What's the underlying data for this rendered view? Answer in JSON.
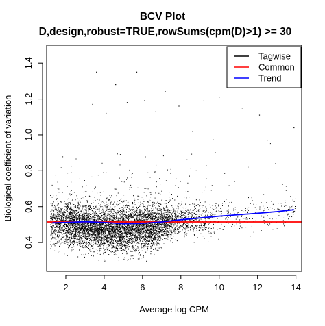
{
  "chart_data": {
    "type": "scatter",
    "title": "BCV Plot",
    "subtitle": "D,design,robust=TRUE,rowSums(cpm(D)>1) >= 30",
    "xlabel": "Average log CPM",
    "ylabel": "Biological coefficient of variation",
    "xlim": [
      1.0,
      14.3
    ],
    "ylim": [
      0.24,
      1.5
    ],
    "xticks": [
      2,
      4,
      6,
      8,
      10,
      12,
      14
    ],
    "yticks": [
      0.4,
      0.6,
      0.8,
      1.0,
      1.2,
      1.4
    ],
    "ytick_labels": [
      "0.4",
      "0.6",
      "0.8",
      "1.0",
      "1.2",
      "1.4"
    ],
    "grid": false,
    "legend_position": "top-right",
    "series": [
      {
        "name": "Tagwise",
        "kind": "points",
        "color": "#000000",
        "description_points": "dense cloud",
        "center_curve": {
          "x": [
            1.2,
            2,
            3,
            4,
            5,
            6,
            7,
            8,
            9,
            10,
            11,
            12,
            13,
            14
          ],
          "y": [
            0.5,
            0.5,
            0.49,
            0.47,
            0.47,
            0.48,
            0.5,
            0.52,
            0.53,
            0.54,
            0.55,
            0.56,
            0.57,
            0.58
          ]
        },
        "outliers": [
          {
            "x": 3.4,
            "y": 1.17
          },
          {
            "x": 4.1,
            "y": 1.12
          },
          {
            "x": 5.2,
            "y": 1.18
          },
          {
            "x": 6.1,
            "y": 1.19
          },
          {
            "x": 6.7,
            "y": 1.13
          },
          {
            "x": 7.9,
            "y": 1.16
          },
          {
            "x": 9.2,
            "y": 1.19
          },
          {
            "x": 10.0,
            "y": 1.21
          },
          {
            "x": 11.2,
            "y": 1.15
          },
          {
            "x": 12.1,
            "y": 1.11
          },
          {
            "x": 12.5,
            "y": 0.97
          },
          {
            "x": 13.9,
            "y": 1.04
          },
          {
            "x": 3.6,
            "y": 1.35
          },
          {
            "x": 11.5,
            "y": 0.82
          },
          {
            "x": 10.8,
            "y": 0.74
          },
          {
            "x": 9.8,
            "y": 0.9
          },
          {
            "x": 8.6,
            "y": 1.02
          },
          {
            "x": 4.6,
            "y": 1.28
          },
          {
            "x": 7.2,
            "y": 1.24
          },
          {
            "x": 5.7,
            "y": 1.35
          }
        ]
      },
      {
        "name": "Common",
        "kind": "line",
        "color": "#ff0000",
        "x": [
          1.0,
          14.3
        ],
        "y": [
          0.515,
          0.515
        ]
      },
      {
        "name": "Trend",
        "kind": "line",
        "color": "#0000ff",
        "x": [
          1.3,
          2.0,
          3.0,
          4.0,
          5.0,
          6.0,
          7.0,
          8.0,
          9.0,
          10.0,
          11.0,
          12.0,
          13.0,
          13.9
        ],
        "y": [
          0.51,
          0.512,
          0.516,
          0.512,
          0.505,
          0.507,
          0.515,
          0.527,
          0.537,
          0.547,
          0.555,
          0.563,
          0.572,
          0.583
        ]
      }
    ]
  }
}
